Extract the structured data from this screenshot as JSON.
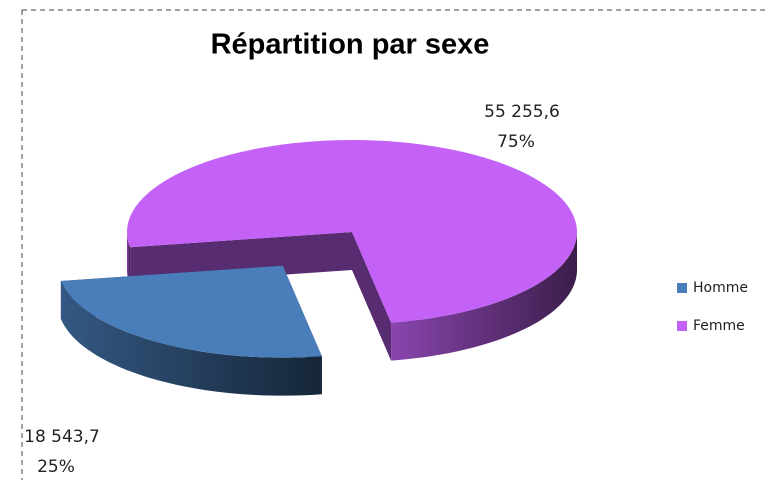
{
  "chart_data": {
    "type": "pie",
    "title": "Répartition par sexe",
    "categories": [
      "Homme",
      "Femme"
    ],
    "values": [
      18543.7,
      55255.6
    ],
    "value_labels": [
      "18 543,7",
      "55 255,6"
    ],
    "percents": [
      25,
      75
    ],
    "percent_labels": [
      "25%",
      "75%"
    ],
    "colors": [
      "#4a7ebb",
      "#c462f8"
    ],
    "legend": "right",
    "exploded": [
      true,
      false
    ],
    "three_d": true
  }
}
